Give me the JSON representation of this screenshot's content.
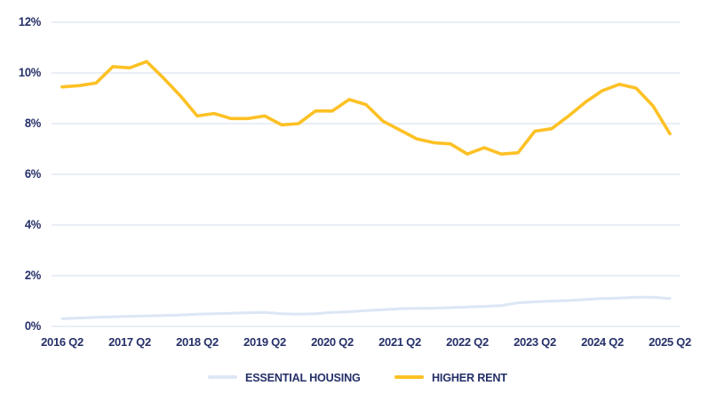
{
  "colors": {
    "background": "#ffffff",
    "text_navy": "#263069",
    "gridline": "#e2e8f4",
    "essential_housing_line": "#dce6f5",
    "higher_rent_line": "#fdc125"
  },
  "legend": {
    "items": [
      {
        "label": "ESSENTIAL HOUSING",
        "color": "#dce6f5"
      },
      {
        "label": "HIGHER RENT",
        "color": "#fdc125"
      }
    ]
  },
  "chart_data": {
    "type": "line",
    "title": "",
    "xlabel": "",
    "ylabel": "",
    "ylim": [
      0,
      12
    ],
    "grid": "horizontal",
    "legend_position": "bottom-center",
    "x": [
      "2016 Q2",
      "2016 Q3",
      "2016 Q4",
      "2017 Q1",
      "2017 Q2",
      "2017 Q3",
      "2017 Q4",
      "2018 Q1",
      "2018 Q2",
      "2018 Q3",
      "2018 Q4",
      "2019 Q1",
      "2019 Q2",
      "2019 Q3",
      "2019 Q4",
      "2020 Q1",
      "2020 Q2",
      "2020 Q3",
      "2020 Q4",
      "2021 Q1",
      "2021 Q2",
      "2021 Q3",
      "2021 Q4",
      "2022 Q1",
      "2022 Q2",
      "2022 Q3",
      "2022 Q4",
      "2023 Q1",
      "2023 Q2",
      "2023 Q3",
      "2023 Q4",
      "2024 Q1",
      "2024 Q2",
      "2024 Q3",
      "2024 Q4",
      "2025 Q1",
      "2025 Q2"
    ],
    "x_ticks": [
      {
        "index": 0,
        "label": "2016 Q2"
      },
      {
        "index": 4,
        "label": "2017 Q2"
      },
      {
        "index": 8,
        "label": "2018 Q2"
      },
      {
        "index": 12,
        "label": "2019 Q2"
      },
      {
        "index": 16,
        "label": "2020 Q2"
      },
      {
        "index": 20,
        "label": "2021 Q2"
      },
      {
        "index": 24,
        "label": "2022 Q2"
      },
      {
        "index": 28,
        "label": "2023 Q2"
      },
      {
        "index": 32,
        "label": "2024 Q2"
      },
      {
        "index": 36,
        "label": "2025 Q2"
      }
    ],
    "y_ticks": [
      {
        "value": 0,
        "label": "0%"
      },
      {
        "value": 2,
        "label": "2%"
      },
      {
        "value": 4,
        "label": "4%"
      },
      {
        "value": 6,
        "label": "6%"
      },
      {
        "value": 8,
        "label": "8%"
      },
      {
        "value": 10,
        "label": "10%"
      },
      {
        "value": 12,
        "label": "12%"
      }
    ],
    "series": [
      {
        "name": "ESSENTIAL HOUSING",
        "color": "#dce6f5",
        "values": [
          0.3,
          0.33,
          0.36,
          0.38,
          0.4,
          0.41,
          0.43,
          0.45,
          0.48,
          0.5,
          0.52,
          0.54,
          0.55,
          0.5,
          0.48,
          0.5,
          0.55,
          0.58,
          0.62,
          0.66,
          0.7,
          0.71,
          0.72,
          0.74,
          0.76,
          0.79,
          0.82,
          0.93,
          0.97,
          1.0,
          1.02,
          1.06,
          1.1,
          1.12,
          1.15,
          1.15,
          1.1
        ]
      },
      {
        "name": "HIGHER RENT",
        "color": "#fdc125",
        "values": [
          9.45,
          9.5,
          9.6,
          10.25,
          10.2,
          10.45,
          9.8,
          9.1,
          8.3,
          8.4,
          8.2,
          8.2,
          8.3,
          7.95,
          8.0,
          8.5,
          8.5,
          8.95,
          8.75,
          8.1,
          7.75,
          7.4,
          7.25,
          7.2,
          6.8,
          7.05,
          6.8,
          6.85,
          7.7,
          7.8,
          8.3,
          8.85,
          9.3,
          9.55,
          9.4,
          8.7,
          7.6
        ]
      }
    ]
  }
}
